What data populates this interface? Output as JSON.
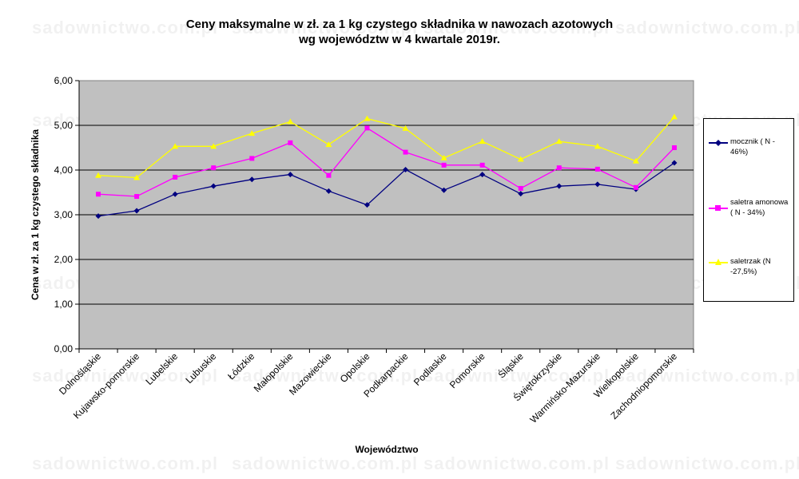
{
  "title": {
    "line1": "Ceny maksymalne  w zł. za 1 kg czystego składnika w nawozach azotowych",
    "line2": "wg województw w 4 kwartale  2019r."
  },
  "watermark": "sadownictwo.com.pl",
  "chart_data": {
    "type": "line",
    "title": "Ceny maksymalne  w zł. za 1 kg czystego składnika w nawozach azotowych wg województw w 4 kwartale  2019r.",
    "xlabel": "Województwo",
    "ylabel": "Cena w zł. za 1 kg czystego składnika",
    "ylim": [
      0,
      6
    ],
    "yticks": [
      "0,00",
      "1,00",
      "2,00",
      "3,00",
      "4,00",
      "5,00",
      "6,00"
    ],
    "grid": true,
    "legend_position": "right",
    "categories": [
      "Dolnośląskie",
      "Kujawsko-pomorskie",
      "Lubelskie",
      "Lubuskie",
      "Łódzkie",
      "Małopolskie",
      "Mazowieckie",
      "Opolskie",
      "Podkarpackie",
      "Podlaskie",
      "Pomorskie",
      "Śląskie",
      "Świętokrzyskie",
      "Warmińsko-Mazurskie",
      "Wielkopolskie",
      "Zachodniopomorskie"
    ],
    "series": [
      {
        "name": "mocznik ( N - 46%)",
        "color": "#000080",
        "marker": "diamond",
        "values": [
          2.97,
          3.09,
          3.46,
          3.64,
          3.79,
          3.9,
          3.53,
          3.22,
          4.01,
          3.55,
          3.9,
          3.47,
          3.64,
          3.68,
          3.57,
          4.16
        ]
      },
      {
        "name": "saletra amonowa ( N - 34%)",
        "color": "#FF00FF",
        "marker": "square",
        "values": [
          3.46,
          3.41,
          3.84,
          4.05,
          4.26,
          4.61,
          3.88,
          4.94,
          4.4,
          4.11,
          4.11,
          3.59,
          4.05,
          4.02,
          3.61,
          4.5
        ]
      },
      {
        "name": "saletrzak (N -27,5%)",
        "color": "#FFFF00",
        "marker": "triangle",
        "values": [
          3.88,
          3.83,
          4.53,
          4.53,
          4.82,
          5.08,
          4.57,
          5.15,
          4.93,
          4.27,
          4.64,
          4.24,
          4.64,
          4.53,
          4.2,
          5.19
        ]
      }
    ]
  }
}
